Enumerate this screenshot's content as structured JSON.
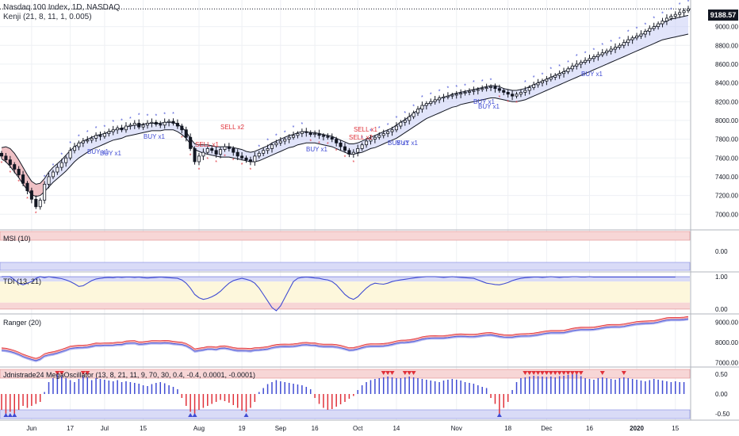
{
  "header": {
    "title": "Nasdaq 100 Index, 1D, NASDAQ",
    "indicator1": "Kenji (21, 8, 11, 1, 0.005)"
  },
  "last_price": "9188.57",
  "panels": {
    "msi": "MSI (10)",
    "tdi": "TDI (13, 21)",
    "ranger": "Ranger (20)",
    "mega": "Jdnistrade24 MegaOscillator (13, 8, 21, 11, 9, 70, 30, 0.4, -0.4, 0.0001, -0.0001)"
  },
  "signals": [
    {
      "text": "SELL x1",
      "type": "sell",
      "i": 45
    },
    {
      "text": "SELL x2",
      "type": "sell",
      "i": 51
    },
    {
      "text": "BUY x1",
      "type": "buy",
      "i": 20
    },
    {
      "text": "BUY x1",
      "type": "buy",
      "i": 23
    },
    {
      "text": "BUY x1",
      "type": "buy",
      "i": 33
    },
    {
      "text": "BUY x1",
      "type": "buy",
      "i": 71
    },
    {
      "text": "SELL x2",
      "type": "sell",
      "i": 81
    },
    {
      "text": "SELL x1",
      "type": "sell",
      "i": 82
    },
    {
      "text": "BUY x1",
      "type": "buy",
      "i": 90
    },
    {
      "text": "BUY x1",
      "type": "buy",
      "i": 92
    },
    {
      "text": "BUY x1",
      "type": "buy",
      "i": 110
    },
    {
      "text": "BUY x1",
      "type": "buy",
      "i": 111
    },
    {
      "text": "BUY x1",
      "type": "buy",
      "i": 135
    }
  ],
  "chart_data": [
    {
      "type": "candlestick",
      "title": "Nasdaq 100 Index, 1D, NASDAQ",
      "ylim": [
        6850,
        9250
      ],
      "yticks": [
        7000,
        7200,
        7400,
        7600,
        7800,
        8000,
        8200,
        8400,
        8600,
        8800,
        9000
      ],
      "x_ticks": [
        {
          "label": "Jun",
          "i": 7
        },
        {
          "label": "17",
          "i": 16
        },
        {
          "label": "Jul",
          "i": 24
        },
        {
          "label": "15",
          "i": 33
        },
        {
          "label": "Aug",
          "i": 46
        },
        {
          "label": "19",
          "i": 56
        },
        {
          "label": "Sep",
          "i": 65
        },
        {
          "label": "16",
          "i": 73
        },
        {
          "label": "Oct",
          "i": 83
        },
        {
          "label": "14",
          "i": 92
        },
        {
          "label": "Nov",
          "i": 106
        },
        {
          "label": "18",
          "i": 118
        },
        {
          "label": "Dec",
          "i": 127
        },
        {
          "label": "16",
          "i": 137
        },
        {
          "label": "2020",
          "i": 148
        },
        {
          "label": "15",
          "i": 157
        }
      ],
      "close": [
        7620,
        7580,
        7530,
        7480,
        7420,
        7330,
        7250,
        7160,
        7080,
        7150,
        7320,
        7400,
        7450,
        7500,
        7550,
        7600,
        7680,
        7720,
        7760,
        7780,
        7790,
        7810,
        7840,
        7830,
        7860,
        7880,
        7900,
        7920,
        7900,
        7940,
        7950,
        7970,
        7930,
        7950,
        7970,
        7980,
        7960,
        7950,
        7980,
        7990,
        7970,
        7940,
        7900,
        7820,
        7700,
        7560,
        7620,
        7660,
        7700,
        7680,
        7640,
        7690,
        7720,
        7700,
        7660,
        7620,
        7600,
        7580,
        7560,
        7620,
        7650,
        7680,
        7700,
        7740,
        7760,
        7780,
        7800,
        7820,
        7840,
        7860,
        7880,
        7870,
        7850,
        7860,
        7840,
        7830,
        7820,
        7800,
        7760,
        7720,
        7680,
        7640,
        7660,
        7700,
        7740,
        7780,
        7800,
        7820,
        7840,
        7860,
        7880,
        7900,
        7940,
        7980,
        8000,
        8040,
        8080,
        8120,
        8160,
        8180,
        8200,
        8220,
        8240,
        8250,
        8260,
        8270,
        8280,
        8290,
        8300,
        8310,
        8320,
        8330,
        8340,
        8350,
        8360,
        8340,
        8320,
        8300,
        8280,
        8260,
        8280,
        8300,
        8320,
        8350,
        8380,
        8400,
        8420,
        8440,
        8460,
        8480,
        8500,
        8520,
        8550,
        8580,
        8600,
        8620,
        8640,
        8660,
        8680,
        8700,
        8720,
        8740,
        8760,
        8780,
        8800,
        8830,
        8860,
        8880,
        8900,
        8920,
        8950,
        8980,
        9000,
        9030,
        9060,
        9090,
        9110,
        9130,
        9150,
        9170,
        9188.57
      ],
      "band_upper": [
        7710,
        7720,
        7700,
        7650,
        7580,
        7500,
        7420,
        7350,
        7320,
        7330,
        7380,
        7450,
        7500,
        7540,
        7580,
        7630,
        7680,
        7720,
        7750,
        7780,
        7800,
        7820,
        7840,
        7850,
        7860,
        7880,
        7890,
        7910,
        7910,
        7930,
        7940,
        7950,
        7950,
        7960,
        7970,
        7970,
        7970,
        7970,
        7980,
        7980,
        7980,
        7960,
        7930,
        7880,
        7810,
        7750,
        7740,
        7740,
        7740,
        7730,
        7720,
        7720,
        7720,
        7720,
        7710,
        7700,
        7690,
        7670,
        7660,
        7670,
        7690,
        7710,
        7730,
        7760,
        7780,
        7800,
        7820,
        7840,
        7850,
        7870,
        7880,
        7880,
        7870,
        7870,
        7860,
        7850,
        7840,
        7830,
        7810,
        7790,
        7770,
        7750,
        7750,
        7760,
        7780,
        7800,
        7820,
        7840,
        7860,
        7880,
        7900,
        7920,
        7950,
        7980,
        8010,
        8040,
        8080,
        8110,
        8150,
        8170,
        8190,
        8210,
        8230,
        8250,
        8260,
        8280,
        8290,
        8300,
        8310,
        8320,
        8330,
        8340,
        8350,
        8360,
        8370,
        8370,
        8360,
        8340,
        8330,
        8320,
        8320,
        8330,
        8340,
        8360,
        8380,
        8400,
        8420,
        8440,
        8460,
        8480,
        8500,
        8520,
        8540,
        8570,
        8590,
        8610,
        8630,
        8650,
        8670,
        8690,
        8710,
        8730,
        8750,
        8770,
        8790,
        8820,
        8850,
        8870,
        8890,
        8910,
        8940,
        8970,
        8990,
        9020,
        9040,
        9060,
        9080,
        9090,
        9100,
        9110,
        9120
      ],
      "band_lower": [
        7590,
        7560,
        7510,
        7450,
        7390,
        7320,
        7260,
        7210,
        7190,
        7200,
        7240,
        7290,
        7340,
        7380,
        7420,
        7460,
        7510,
        7560,
        7600,
        7630,
        7660,
        7690,
        7710,
        7730,
        7750,
        7770,
        7790,
        7800,
        7810,
        7830,
        7840,
        7850,
        7860,
        7870,
        7880,
        7890,
        7890,
        7890,
        7900,
        7900,
        7900,
        7880,
        7850,
        7810,
        7750,
        7690,
        7670,
        7650,
        7640,
        7630,
        7620,
        7610,
        7610,
        7610,
        7600,
        7590,
        7580,
        7570,
        7560,
        7560,
        7570,
        7590,
        7610,
        7630,
        7650,
        7670,
        7690,
        7710,
        7720,
        7740,
        7750,
        7760,
        7760,
        7760,
        7750,
        7740,
        7730,
        7720,
        7700,
        7680,
        7660,
        7640,
        7640,
        7650,
        7660,
        7680,
        7700,
        7710,
        7730,
        7750,
        7770,
        7790,
        7810,
        7840,
        7870,
        7900,
        7930,
        7960,
        7990,
        8020,
        8040,
        8060,
        8080,
        8100,
        8120,
        8140,
        8150,
        8170,
        8180,
        8190,
        8200,
        8210,
        8220,
        8230,
        8240,
        8240,
        8230,
        8220,
        8210,
        8200,
        8200,
        8210,
        8220,
        8240,
        8260,
        8280,
        8300,
        8320,
        8340,
        8360,
        8380,
        8400,
        8420,
        8440,
        8460,
        8480,
        8500,
        8520,
        8540,
        8560,
        8580,
        8600,
        8620,
        8640,
        8660,
        8680,
        8700,
        8720,
        8740,
        8760,
        8780,
        8800,
        8820,
        8840,
        8860,
        8870,
        8880,
        8890,
        8900,
        8910,
        8920
      ]
    },
    {
      "type": "line",
      "title": "MSI (10)",
      "yticks": [
        0.0
      ]
    },
    {
      "type": "line",
      "title": "TDI (13, 21)",
      "yticks": [
        1.0,
        0.0
      ],
      "ylim": [
        -0.05,
        1.05
      ],
      "values": [
        1.0,
        1.0,
        1.0,
        0.9,
        0.8,
        0.75,
        0.8,
        0.85,
        0.95,
        1.0,
        0.97,
        1.0,
        0.98,
        0.96,
        0.94,
        0.9,
        0.85,
        0.78,
        0.7,
        0.72,
        0.8,
        0.88,
        0.93,
        0.95,
        0.97,
        0.98,
        0.97,
        0.99,
        0.98,
        0.99,
        0.99,
        0.98,
        0.99,
        0.97,
        0.96,
        0.97,
        0.98,
        0.99,
        0.98,
        0.97,
        0.96,
        0.95,
        0.9,
        0.8,
        0.65,
        0.45,
        0.35,
        0.3,
        0.33,
        0.38,
        0.45,
        0.55,
        0.68,
        0.8,
        0.88,
        0.92,
        0.95,
        0.92,
        0.88,
        0.8,
        0.65,
        0.45,
        0.25,
        0.05,
        -0.05,
        0.1,
        0.35,
        0.6,
        0.85,
        0.95,
        0.98,
        0.99,
        0.98,
        0.96,
        0.95,
        0.92,
        0.9,
        0.85,
        0.75,
        0.6,
        0.45,
        0.35,
        0.3,
        0.38,
        0.52,
        0.65,
        0.75,
        0.8,
        0.78,
        0.77,
        0.8,
        0.85,
        0.88,
        0.9,
        0.92,
        0.94,
        0.96,
        0.98,
        0.99,
        1.0,
        1.0,
        1.0,
        0.99,
        0.98,
        0.99,
        1.0,
        0.99,
        0.98,
        0.97,
        0.96,
        0.95,
        0.9,
        0.85,
        0.8,
        0.78,
        0.76,
        0.75,
        0.78,
        0.82,
        0.88,
        0.92,
        0.95,
        0.97,
        0.98,
        0.99,
        0.99,
        0.98,
        0.99,
        1.0,
        0.99,
        0.98,
        0.99,
        0.99,
        1.0,
        1.0,
        0.99,
        0.99,
        1.0,
        0.99,
        0.99,
        0.99,
        0.99,
        0.99,
        0.99,
        0.99,
        0.99,
        0.99,
        0.99,
        0.99,
        0.99,
        0.99,
        0.99,
        0.99,
        0.99,
        0.99,
        0.99,
        0.99,
        0.99
      ]
    },
    {
      "type": "line",
      "title": "Ranger (20)",
      "yticks": [
        9000,
        8000,
        7000
      ],
      "ylim": [
        6900,
        9300
      ]
    },
    {
      "type": "bar",
      "title": "Jdnistrade24 MegaOscillator (13, 8, 21, 11, 9, 70, 30, 0.4, -0.4, 0.0001, -0.0001)",
      "yticks": [
        0.5,
        0.0,
        -0.5
      ],
      "ylim": [
        -0.62,
        0.62
      ],
      "values": [
        -0.4,
        -0.5,
        -0.45,
        -0.5,
        -0.4,
        -0.3,
        -0.35,
        -0.3,
        -0.25,
        -0.2,
        0.05,
        0.3,
        0.4,
        0.5,
        0.45,
        0.4,
        0.35,
        0.3,
        0.38,
        0.45,
        0.42,
        0.35,
        0.4,
        0.38,
        0.36,
        0.34,
        0.32,
        0.35,
        0.3,
        0.32,
        0.3,
        0.28,
        0.26,
        0.22,
        0.2,
        0.25,
        0.28,
        0.3,
        0.27,
        0.22,
        0.18,
        0.12,
        -0.1,
        -0.3,
        -0.45,
        -0.5,
        -0.4,
        -0.35,
        -0.3,
        -0.25,
        -0.2,
        -0.15,
        -0.18,
        -0.22,
        -0.28,
        -0.35,
        -0.42,
        -0.45,
        -0.35,
        -0.2,
        0.05,
        0.15,
        0.25,
        0.3,
        0.35,
        0.32,
        0.3,
        0.28,
        0.26,
        0.24,
        0.22,
        0.18,
        0.12,
        -0.1,
        -0.25,
        -0.35,
        -0.4,
        -0.38,
        -0.32,
        -0.26,
        -0.2,
        -0.12,
        -0.05,
        0.1,
        0.22,
        0.3,
        0.35,
        0.38,
        0.4,
        0.42,
        0.44,
        0.42,
        0.4,
        0.4,
        0.42,
        0.44,
        0.42,
        0.4,
        0.38,
        0.36,
        0.34,
        0.32,
        0.3,
        0.34,
        0.36,
        0.38,
        0.36,
        0.34,
        0.3,
        0.28,
        0.26,
        0.22,
        0.18,
        0.15,
        -0.1,
        -0.25,
        -0.5,
        -0.35,
        -0.2,
        0.1,
        0.3,
        0.4,
        0.42,
        0.44,
        0.46,
        0.45,
        0.44,
        0.43,
        0.44,
        0.42,
        0.45,
        0.46,
        0.48,
        0.55,
        0.5,
        0.45,
        0.4,
        0.38,
        0.36,
        0.4,
        0.42,
        0.4,
        0.38,
        0.36,
        0.4,
        0.42,
        0.4,
        0.38,
        0.36,
        0.34,
        0.32,
        0.35,
        0.38,
        0.36,
        0.34,
        0.32,
        0.3,
        0.32,
        0.3,
        0.3
      ]
    }
  ]
}
